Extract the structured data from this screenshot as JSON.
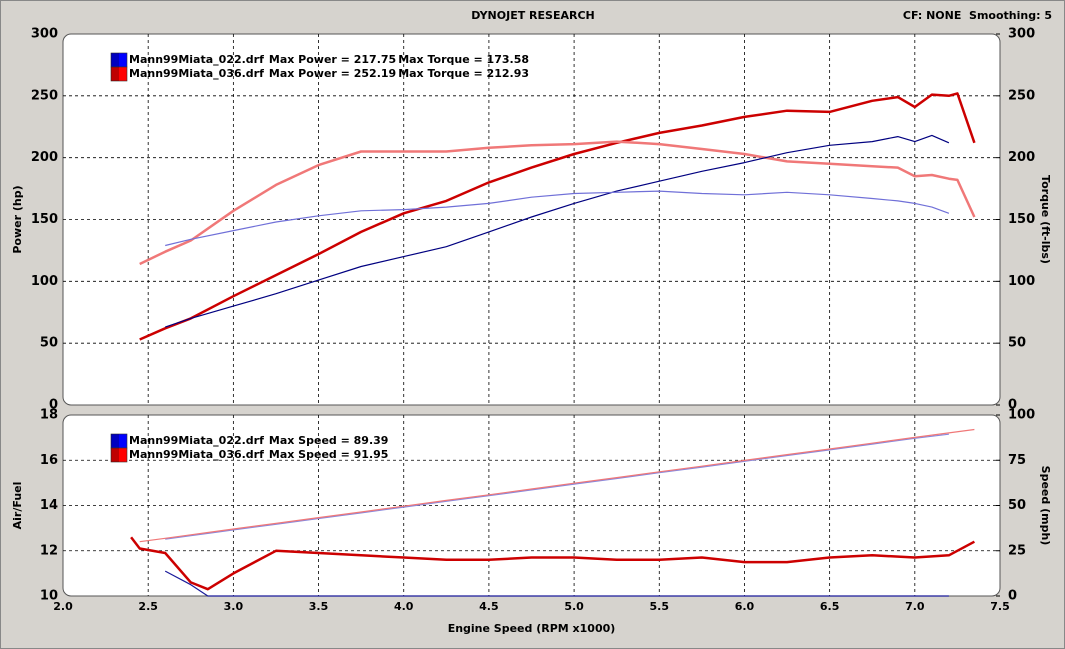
{
  "header": {
    "title": "DYNOJET RESEARCH",
    "settings": "CF: NONE  Smoothing: 5"
  },
  "chart_data": [
    {
      "type": "line",
      "ylabel": "Power (hp)",
      "y2label": "Torque (ft-lbs)",
      "legend": [
        {
          "name": "Mann99Miata_022.drf",
          "color": "#0000ff",
          "stats": [
            "Max Power = 217.75",
            "Max Torque = 173.58"
          ]
        },
        {
          "name": "Mann99Miata_036.drf",
          "color": "#ff0000",
          "stats": [
            "Max Power = 252.19",
            "Max Torque = 212.93"
          ]
        }
      ],
      "xlim": [
        2,
        7.5
      ],
      "ylim": [
        0,
        300
      ],
      "yticks": [
        0,
        50,
        100,
        150,
        200,
        250,
        300
      ],
      "y2lim": [
        0,
        300
      ],
      "y2ticks": [
        0,
        50,
        100,
        150,
        200,
        250,
        300
      ],
      "grid": true,
      "x": [
        2.45,
        2.6,
        2.75,
        3.0,
        3.25,
        3.5,
        3.75,
        4.0,
        4.25,
        4.5,
        4.75,
        5.0,
        5.25,
        5.5,
        5.75,
        6.0,
        6.25,
        6.5,
        6.75,
        6.9,
        7.0,
        7.1,
        7.2,
        7.25,
        7.35
      ],
      "series": [
        {
          "color": "#cc0000",
          "values": [
            53,
            62,
            70,
            88,
            105,
            122,
            140,
            155,
            165,
            180,
            192,
            203,
            212,
            220,
            226,
            233,
            238,
            237,
            246,
            249,
            241,
            251,
            250,
            252,
            212
          ]
        },
        {
          "color": "#f07878",
          "axis": "y2",
          "values": [
            114,
            124,
            133,
            157,
            178,
            194,
            205,
            205,
            205,
            208,
            210,
            211,
            213,
            211,
            207,
            203,
            197,
            195,
            193,
            192,
            185,
            186,
            183,
            182,
            152
          ]
        },
        {
          "color": "#000080",
          "values": [
            null,
            63,
            70,
            80,
            90,
            101,
            112,
            120,
            128,
            140,
            152,
            163,
            173,
            181,
            189,
            196,
            204,
            210,
            213,
            217,
            213,
            218,
            212,
            null,
            null
          ]
        },
        {
          "color": "#7070d8",
          "axis": "y2",
          "values": [
            null,
            129,
            134,
            141,
            148,
            153,
            157,
            158,
            160,
            163,
            168,
            171,
            172,
            173,
            171,
            170,
            172,
            170,
            167,
            165,
            163,
            160,
            155,
            null,
            null
          ]
        }
      ]
    },
    {
      "type": "line",
      "xlabel": "Engine Speed (RPM x1000)",
      "ylabel": "Air/Fuel",
      "y2label": "Speed (mph)",
      "legend": [
        {
          "name": "Mann99Miata_022.drf",
          "color": "#0000ff",
          "stats": [
            "Max Speed = 89.39"
          ]
        },
        {
          "name": "Mann99Miata_036.drf",
          "color": "#ff0000",
          "stats": [
            "Max Speed = 91.95"
          ]
        }
      ],
      "xlim": [
        2,
        7.5
      ],
      "xticks": [
        {
          "value": 2,
          "label": "2.0"
        },
        2.5,
        {
          "value": 3,
          "label": "3.0"
        },
        3.5,
        {
          "value": 4,
          "label": "4.0"
        },
        4.5,
        {
          "value": 5,
          "label": "5.0"
        },
        5.5,
        {
          "value": 6,
          "label": "6.0"
        },
        6.5,
        {
          "value": 7,
          "label": "7.0"
        },
        7.5
      ],
      "ylim": [
        10,
        18
      ],
      "yticks": [
        10,
        12,
        14,
        16,
        18
      ],
      "y2lim": [
        0,
        100
      ],
      "y2ticks": [
        0,
        25,
        50,
        75,
        100
      ],
      "grid": true,
      "x": [
        2.4,
        2.45,
        2.6,
        2.75,
        2.85,
        3.0,
        3.25,
        3.5,
        3.75,
        4.0,
        4.25,
        4.5,
        4.75,
        5.0,
        5.25,
        5.5,
        5.75,
        6.0,
        6.25,
        6.5,
        6.75,
        7.0,
        7.2,
        7.35
      ],
      "series": [
        {
          "color": "#cc0000",
          "values": [
            12.6,
            12.1,
            11.9,
            10.6,
            10.3,
            11.0,
            12.0,
            11.9,
            11.8,
            11.7,
            11.6,
            11.6,
            11.7,
            11.7,
            11.6,
            11.6,
            11.7,
            11.5,
            11.5,
            11.7,
            11.8,
            11.7,
            11.8,
            12.4
          ]
        },
        {
          "color": "#1a1a9a",
          "values": [
            null,
            null,
            11.1,
            10.5,
            10.0,
            10,
            10,
            10,
            10,
            10,
            10,
            10,
            10,
            10,
            10,
            10,
            10,
            10,
            10,
            10,
            10,
            10,
            10,
            null
          ]
        },
        {
          "color": "#8888dd",
          "axis": "y2",
          "values": [
            null,
            null,
            31.4,
            33.3,
            34.6,
            36.5,
            39.6,
            42.8,
            45.9,
            49.1,
            52.3,
            55.4,
            58.6,
            61.8,
            64.9,
            68.1,
            71.2,
            74.4,
            77.6,
            80.7,
            83.9,
            87.1,
            89.4,
            null
          ]
        },
        {
          "color": "#f07878",
          "axis": "y2",
          "values": [
            null,
            30.0,
            31.9,
            33.8,
            35.1,
            37.0,
            40.1,
            43.3,
            46.4,
            49.6,
            52.8,
            55.9,
            59.1,
            62.3,
            65.4,
            68.6,
            71.7,
            74.9,
            78.1,
            81.2,
            84.4,
            87.6,
            90.1,
            92.0
          ]
        }
      ]
    }
  ]
}
